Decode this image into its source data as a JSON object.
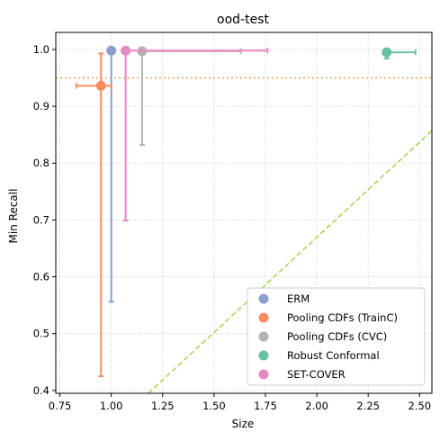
{
  "chart_data": {
    "type": "scatter",
    "title": "ood-test",
    "xlabel": "Size",
    "ylabel": "Min Recall",
    "xlim": [
      0.73,
      2.56
    ],
    "ylim": [
      0.395,
      1.03
    ],
    "xticks": [
      0.75,
      1.0,
      1.25,
      1.5,
      1.75,
      2.0,
      2.25,
      2.5
    ],
    "xtick_labels": [
      "0.75",
      "1.00",
      "1.25",
      "1.50",
      "1.75",
      "2.00",
      "2.25",
      "2.50"
    ],
    "yticks": [
      0.4,
      0.5,
      0.6,
      0.7,
      0.8,
      0.9,
      1.0
    ],
    "ytick_labels": [
      "0.4",
      "0.5",
      "0.6",
      "0.7",
      "0.8",
      "0.9",
      "1.0"
    ],
    "grid": true,
    "legend_position": "bottom-right",
    "reference_lines": [
      {
        "kind": "horizontal",
        "y": 0.95,
        "style": "dotted",
        "color": "#e8a860"
      },
      {
        "kind": "diagonal",
        "x": [
          1.18,
          2.56
        ],
        "y": [
          0.395,
          0.857
        ],
        "style": "dashed",
        "color": "#a6d854"
      }
    ],
    "series": [
      {
        "name": "ERM",
        "color": "#8da0cb",
        "x": 1.0,
        "y": 0.998,
        "x_err": [
          1.0,
          1.0
        ],
        "y_err": [
          0.556,
          0.998
        ]
      },
      {
        "name": "Pooling CDFs (TrainC)",
        "color": "#fc8d62",
        "x": 0.95,
        "y": 0.936,
        "x_err": [
          0.83,
          1.0
        ],
        "y_err": [
          0.425,
          0.993
        ]
      },
      {
        "name": "Pooling CDFs (CVC)",
        "color": "#b3b3b3",
        "x": 1.15,
        "y": 0.997,
        "x_err": [
          1.15,
          1.63
        ],
        "y_err": [
          0.832,
          0.997
        ]
      },
      {
        "name": "Robust Conformal",
        "color": "#66c2a5",
        "x": 2.34,
        "y": 0.995,
        "x_err": [
          2.34,
          2.48
        ],
        "y_err": [
          0.984,
          0.997
        ]
      },
      {
        "name": "SET-COVER",
        "color": "#e78ac3",
        "x": 1.07,
        "y": 0.998,
        "x_err": [
          1.07,
          1.76
        ],
        "y_err": [
          0.699,
          0.998
        ]
      }
    ]
  }
}
